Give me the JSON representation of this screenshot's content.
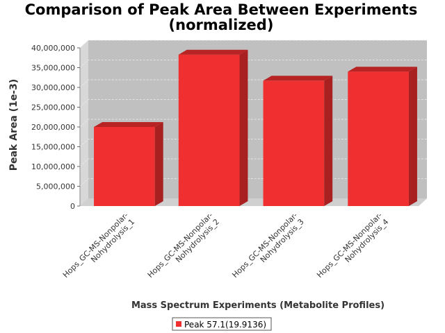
{
  "chart_data": {
    "type": "bar",
    "title_line1": "Comparison of Peak Area Between Experiments",
    "title_line2": "(normalized)",
    "xlabel": "Mass Spectrum Experiments (Metabolite Profiles)",
    "ylabel": "Peak Area (1e-3)",
    "ylim": [
      0,
      40000000
    ],
    "yticks": [
      0,
      5000000,
      10000000,
      15000000,
      20000000,
      25000000,
      30000000,
      35000000,
      40000000
    ],
    "ytick_labels": [
      "0",
      "5,000,000",
      "10,000,000",
      "15,000,000",
      "20,000,000",
      "25,000,000",
      "30,000,000",
      "35,000,000",
      "40,000,000"
    ],
    "categories": [
      [
        "Hops_GC-MS-Nonpolar-",
        "Nohydrolysis_1"
      ],
      [
        "Hops_GC-MS-Nonpolar-",
        "Nohydrolysis_2"
      ],
      [
        "Hops_GC-MS-Nonpolar-",
        "Nohydrolysis_3"
      ],
      [
        "Hops_GC-MS-Nonpolar-",
        "Nohydrolysis_4"
      ]
    ],
    "series": [
      {
        "name": "Peak 57.1(19.9136)",
        "values": [
          20000000,
          38300000,
          31700000,
          34000000
        ]
      }
    ],
    "colors": {
      "bar": "#f03030",
      "bar_top": "#b82424",
      "bar_side": "#a82020",
      "plot_bg": "#c0c0c0",
      "wall": "#d8d8d8"
    },
    "grid": true,
    "legend_position": "bottom"
  }
}
